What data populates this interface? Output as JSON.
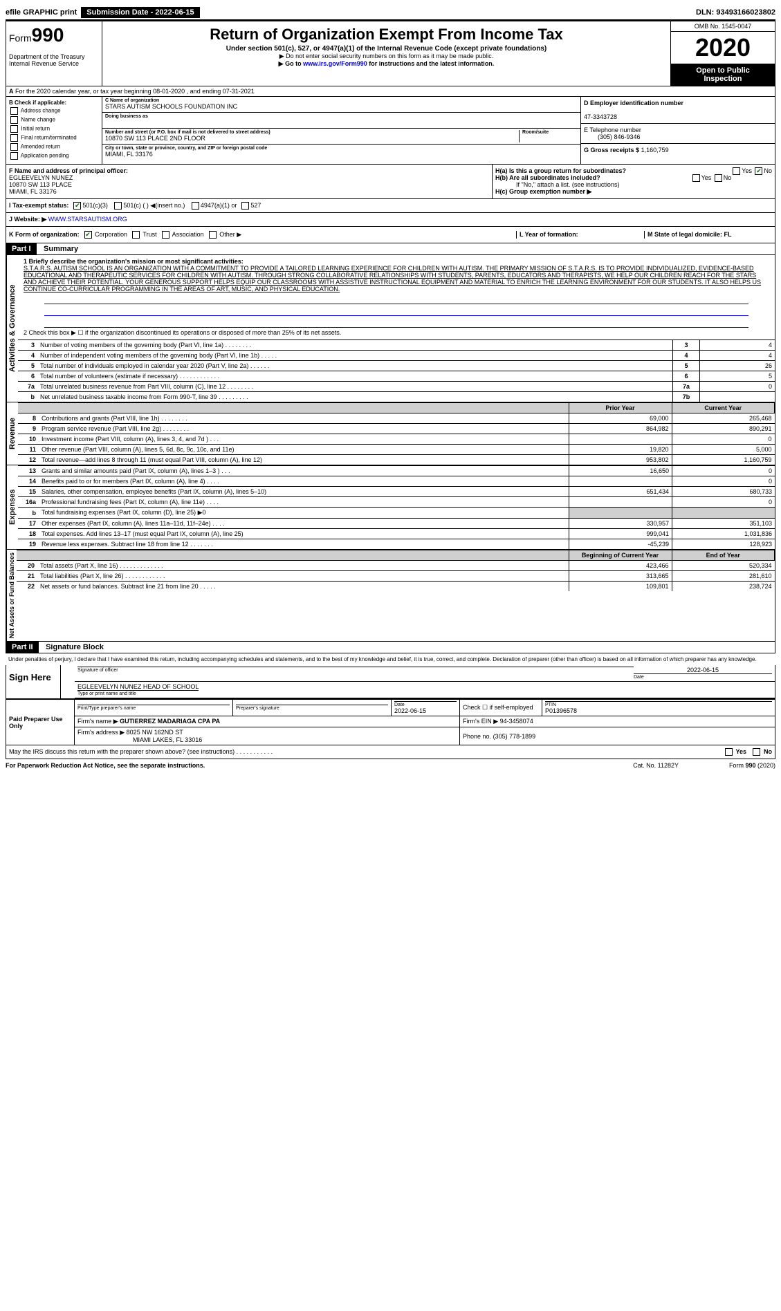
{
  "top": {
    "efile": "efile GRAPHIC print",
    "submission_label": "Submission Date - 2022-06-15",
    "dln": "DLN: 93493166023802"
  },
  "header": {
    "form_prefix": "Form",
    "form_number": "990",
    "title": "Return of Organization Exempt From Income Tax",
    "subtitle": "Under section 501(c), 527, or 4947(a)(1) of the Internal Revenue Code (except private foundations)",
    "note1": "▶ Do not enter social security numbers on this form as it may be made public.",
    "note2_pre": "▶ Go to ",
    "note2_link": "www.irs.gov/Form990",
    "note2_post": " for instructions and the latest information.",
    "dept1": "Department of the Treasury",
    "dept2": "Internal Revenue Service",
    "omb": "OMB No. 1545-0047",
    "year": "2020",
    "inspect1": "Open to Public",
    "inspect2": "Inspection"
  },
  "rowA": "For the 2020 calendar year, or tax year beginning 08-01-2020   , and ending 07-31-2021",
  "boxB": {
    "title": "B Check if applicable:",
    "opts": [
      "Address change",
      "Name change",
      "Initial return",
      "Final return/terminated",
      "Amended return",
      "Application pending"
    ]
  },
  "boxC": {
    "name_lbl": "C Name of organization",
    "name": "STARS AUTISM SCHOOLS FOUNDATION INC",
    "dba_lbl": "Doing business as",
    "dba": "",
    "addr_lbl": "Number and street (or P.O. box if mail is not delivered to street address)",
    "room_lbl": "Room/suite",
    "addr": "10870 SW 113 PLACE 2ND FLOOR",
    "city_lbl": "City or town, state or province, country, and ZIP or foreign postal code",
    "city": "MIAMI, FL  33176"
  },
  "boxD": {
    "ein_lbl": "D Employer identification number",
    "ein": "47-3343728",
    "phone_lbl": "E Telephone number",
    "phone": "(305) 846-9346",
    "gross_lbl": "G Gross receipts $",
    "gross": "1,160,759"
  },
  "boxF": {
    "lbl": "F  Name and address of principal officer:",
    "name": "EGLEEVELYN NUNEZ",
    "addr1": "10870 SW 113 PLACE",
    "addr2": "MIAMI, FL  33176"
  },
  "boxH": {
    "ha": "H(a)  Is this a group return for subordinates?",
    "hb": "H(b)  Are all subordinates included?",
    "hb_note": "If \"No,\" attach a list. (see instructions)",
    "hc": "H(c)  Group exemption number ▶",
    "yes": "Yes",
    "no": "No"
  },
  "rowI": {
    "lbl": "I   Tax-exempt status:",
    "o1": "501(c)(3)",
    "o2": "501(c) (  )  ◀(insert no.)",
    "o3": "4947(a)(1) or",
    "o4": "527"
  },
  "rowJ": {
    "lbl": "J   Website: ▶",
    "val": "WWW.STARSAUTISM.ORG"
  },
  "rowK": {
    "lbl": "K Form of organization:",
    "o1": "Corporation",
    "o2": "Trust",
    "o3": "Association",
    "o4": "Other ▶",
    "L": "L Year of formation:",
    "M": "M State of legal domicile: FL"
  },
  "part1": {
    "hdr": "Part I",
    "title": "Summary",
    "line1_lbl": "1  Briefly describe the organization's mission or most significant activities:",
    "mission": "S.T.A.R.S. AUTISM SCHOOL IS AN ORGANIZATION WITH A COMMITMENT TO PROVIDE A TAILORED LEARNING EXPERIENCE FOR CHILDREN WITH AUTISM. THE PRIMARY MISSION OF S.T.A.R.S. IS TO PROVIDE INDIVIDUALIZED, EVIDENCE-BASED EDUCATIONAL AND THERAPEUTIC SERVICES FOR CHILDREN WITH AUTISM. THROUGH STRONG COLLABORATIVE RELATIONSHIPS WITH STUDENTS, PARENTS, EDUCATORS AND THERAPISTS, WE HELP OUR CHILDREN REACH FOR THE STARS AND ACHIEVE THEIR POTENTIAL. YOUR GENEROUS SUPPORT HELPS EQUIP OUR CLASSROOMS WITH ASSISTIVE INSTRUCTIONAL EQUIPMENT AND MATERIAL TO ENRICH THE LEARNING ENVIRONMENT FOR OUR STUDENTS. IT ALSO HELPS US CONTINUE CO-CURRICULAR PROGRAMMING IN THE AREAS OF ART, MUSIC, AND PHYSICAL EDUCATION.",
    "line2": "2  Check this box ▶ ☐ if the organization discontinued its operations or disposed of more than 25% of its net assets.",
    "vtab_gov": "Activities & Governance",
    "vtab_rev": "Revenue",
    "vtab_exp": "Expenses",
    "vtab_net": "Net Assets or Fund Balances",
    "rows_gov": [
      {
        "n": "3",
        "t": "Number of voting members of the governing body (Part VI, line 1a)  .    .    .    .    .    .    .    .",
        "box": "3",
        "v": "4"
      },
      {
        "n": "4",
        "t": "Number of independent voting members of the governing body (Part VI, line 1b)  .    .    .    .    .",
        "box": "4",
        "v": "4"
      },
      {
        "n": "5",
        "t": "Total number of individuals employed in calendar year 2020 (Part V, line 2a)  .    .    .    .    .    .",
        "box": "5",
        "v": "26"
      },
      {
        "n": "6",
        "t": "Total number of volunteers (estimate if necessary)  .    .    .    .    .    .    .    .    .    .    .    .",
        "box": "6",
        "v": "5"
      },
      {
        "n": "7a",
        "t": "Total unrelated business revenue from Part VIII, column (C), line 12  .    .    .    .    .    .    .    .",
        "box": "7a",
        "v": "0"
      },
      {
        "n": "b",
        "t": "Net unrelated business taxable income from Form 990-T, line 39  .    .    .    .    .    .    .    .    .",
        "box": "7b",
        "v": ""
      }
    ],
    "hdr_py": "Prior Year",
    "hdr_cy": "Current Year",
    "rows_rev": [
      {
        "n": "8",
        "t": "Contributions and grants (Part VIII, line 1h)  .    .    .    .    .    .    .    .",
        "py": "69,000",
        "cy": "265,468"
      },
      {
        "n": "9",
        "t": "Program service revenue (Part VIII, line 2g)  .    .    .    .    .    .    .    .",
        "py": "864,982",
        "cy": "890,291"
      },
      {
        "n": "10",
        "t": "Investment income (Part VIII, column (A), lines 3, 4, and 7d )   .    .    .",
        "py": "",
        "cy": "0"
      },
      {
        "n": "11",
        "t": "Other revenue (Part VIII, column (A), lines 5, 6d, 8c, 9c, 10c, and 11e)",
        "py": "19,820",
        "cy": "5,000"
      },
      {
        "n": "12",
        "t": "Total revenue—add lines 8 through 11 (must equal Part VIII, column (A), line 12)",
        "py": "953,802",
        "cy": "1,160,759"
      }
    ],
    "rows_exp": [
      {
        "n": "13",
        "t": "Grants and similar amounts paid (Part IX, column (A), lines 1–3 )  .    .    .",
        "py": "16,650",
        "cy": "0"
      },
      {
        "n": "14",
        "t": "Benefits paid to or for members (Part IX, column (A), line 4)  .    .    .    .",
        "py": "",
        "cy": "0"
      },
      {
        "n": "15",
        "t": "Salaries, other compensation, employee benefits (Part IX, column (A), lines 5–10)",
        "py": "651,434",
        "cy": "680,733"
      },
      {
        "n": "16a",
        "t": "Professional fundraising fees (Part IX, column (A), line 11e)  .    .    .    .",
        "py": "",
        "cy": "0"
      },
      {
        "n": "b",
        "t": "Total fundraising expenses (Part IX, column (D), line 25) ▶0",
        "py": "shade",
        "cy": "shade"
      },
      {
        "n": "17",
        "t": "Other expenses (Part IX, column (A), lines 11a–11d, 11f–24e)  .    .    .    .",
        "py": "330,957",
        "cy": "351,103"
      },
      {
        "n": "18",
        "t": "Total expenses. Add lines 13–17 (must equal Part IX, column (A), line 25)",
        "py": "999,041",
        "cy": "1,031,836"
      },
      {
        "n": "19",
        "t": "Revenue less expenses. Subtract line 18 from line 12  .    .    .    .    .    .    .",
        "py": "-45,239",
        "cy": "128,923"
      }
    ],
    "hdr_boy": "Beginning of Current Year",
    "hdr_eoy": "End of Year",
    "rows_net": [
      {
        "n": "20",
        "t": "Total assets (Part X, line 16)  .    .    .    .    .    .    .    .    .    .    .    .    .",
        "py": "423,466",
        "cy": "520,334"
      },
      {
        "n": "21",
        "t": "Total liabilities (Part X, line 26)  .    .    .    .    .    .    .    .    .    .    .    .",
        "py": "313,665",
        "cy": "281,610"
      },
      {
        "n": "22",
        "t": "Net assets or fund balances. Subtract line 21 from line 20  .    .    .    .    .",
        "py": "109,801",
        "cy": "238,724"
      }
    ]
  },
  "part2": {
    "hdr": "Part II",
    "title": "Signature Block",
    "perjury": "Under penalties of perjury, I declare that I have examined this return, including accompanying schedules and statements, and to the best of my knowledge and belief, it is true, correct, and complete. Declaration of preparer (other than officer) is based on all information of which preparer has any knowledge.",
    "sign_here": "Sign Here",
    "sig_officer_lbl": "Signature of officer",
    "date": "2022-06-15",
    "date_lbl": "Date",
    "officer_name": "EGLEEVELYN NUNEZ  HEAD OF SCHOOL",
    "type_lbl": "Type or print name and title",
    "paid_prep": "Paid Preparer Use Only",
    "prep_name_lbl": "Print/Type preparer's name",
    "prep_sig_lbl": "Preparer's signature",
    "prep_date_lbl": "Date",
    "prep_date": "2022-06-15",
    "self_emp": "Check ☐ if self-employed",
    "ptin_lbl": "PTIN",
    "ptin": "P01396578",
    "firm_name_lbl": "Firm's name    ▶",
    "firm_name": "GUTIERREZ MADARIAGA CPA PA",
    "firm_ein_lbl": "Firm's EIN ▶",
    "firm_ein": "94-3458074",
    "firm_addr_lbl": "Firm's address ▶",
    "firm_addr1": "8025 NW 162ND ST",
    "firm_addr2": "MIAMI LAKES, FL  33016",
    "firm_phone_lbl": "Phone no.",
    "firm_phone": "(305) 778-1899",
    "discuss": "May the IRS discuss this return with the preparer shown above? (see instructions)   .    .    .    .    .    .    .    .    .    .    .",
    "yes": "Yes",
    "no": "No"
  },
  "footer": {
    "pra": "For Paperwork Reduction Act Notice, see the separate instructions.",
    "cat": "Cat. No. 11282Y",
    "form": "Form 990 (2020)"
  }
}
